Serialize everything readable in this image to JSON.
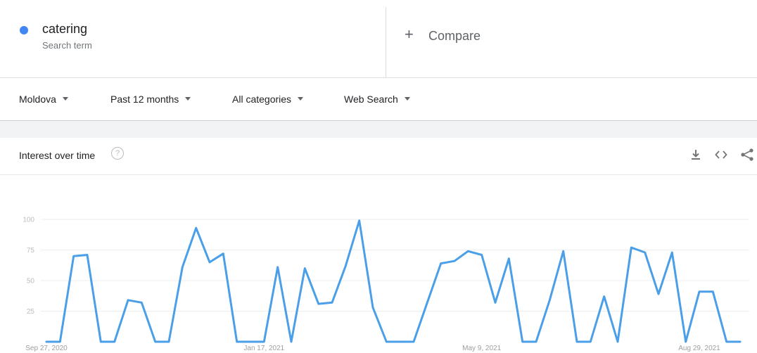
{
  "term": {
    "name": "catering",
    "subtitle": "Search term",
    "color": "#4285f4"
  },
  "compare": {
    "icon": "plus-icon",
    "label": "Compare"
  },
  "filters": [
    {
      "label": "Moldova"
    },
    {
      "label": "Past 12 months"
    },
    {
      "label": "All categories"
    },
    {
      "label": "Web Search"
    }
  ],
  "interest": {
    "title": "Interest over time",
    "icons": [
      "help-icon",
      "download-icon",
      "embed-icon",
      "share-icon"
    ]
  },
  "chart_data": {
    "type": "line",
    "title": "",
    "xlabel": "",
    "ylabel": "",
    "ylim": [
      0,
      100
    ],
    "y_ticks": [
      25,
      50,
      75,
      100
    ],
    "x_tick_labels": [
      {
        "label": "Sep 27, 2020",
        "index": 0
      },
      {
        "label": "Jan 17, 2021",
        "index": 16
      },
      {
        "label": "May 9, 2021",
        "index": 32
      },
      {
        "label": "Aug 29, 2021",
        "index": 48
      }
    ],
    "grid": true,
    "series": [
      {
        "color": "#4a9fe8",
        "values": [
          0,
          0,
          70,
          71,
          0,
          0,
          34,
          32,
          0,
          0,
          61,
          93,
          65,
          72,
          0,
          0,
          0,
          61,
          0,
          60,
          31,
          32,
          62,
          99,
          28,
          0,
          0,
          0,
          32,
          64,
          66,
          74,
          71,
          32,
          68,
          0,
          0,
          34,
          74,
          0,
          0,
          37,
          0,
          77,
          73,
          39,
          73,
          0,
          41,
          41,
          0,
          0
        ]
      }
    ]
  }
}
